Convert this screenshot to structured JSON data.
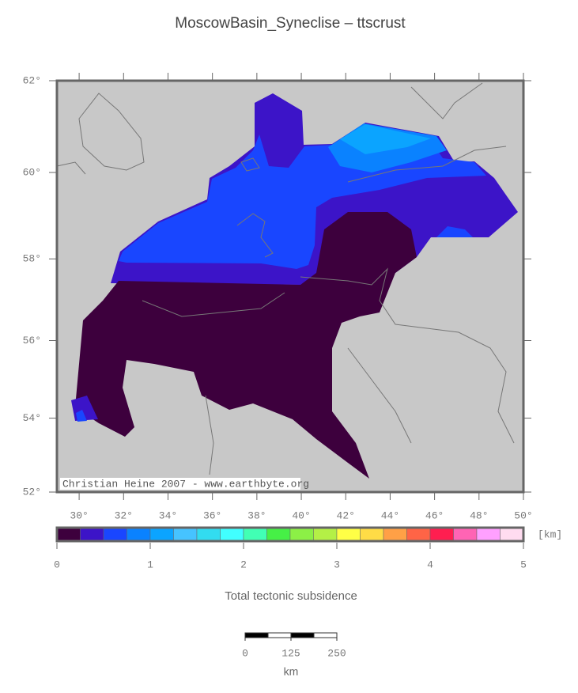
{
  "title": "MoscowBasin_Syneclise – ttscrust",
  "map": {
    "lon_range": [
      29,
      50
    ],
    "lat_range": [
      52,
      62
    ],
    "lon_ticks": [
      {
        "value": 30,
        "label": "30°"
      },
      {
        "value": 32,
        "label": "32°"
      },
      {
        "value": 34,
        "label": "34°"
      },
      {
        "value": 36,
        "label": "36°"
      },
      {
        "value": 38,
        "label": "38°"
      },
      {
        "value": 40,
        "label": "40°"
      },
      {
        "value": 42,
        "label": "42°"
      },
      {
        "value": 44,
        "label": "44°"
      },
      {
        "value": 46,
        "label": "46°"
      },
      {
        "value": 48,
        "label": "48°"
      },
      {
        "value": 50,
        "label": "50°"
      }
    ],
    "lat_ticks": [
      {
        "value": 52,
        "label": "52°"
      },
      {
        "value": 54,
        "label": "54°"
      },
      {
        "value": 56,
        "label": "56°"
      },
      {
        "value": 58,
        "label": "58°"
      },
      {
        "value": 60,
        "label": "60°"
      },
      {
        "value": 62,
        "label": "62°"
      }
    ],
    "credit": "Christian Heine 2007 - www.earthbyte.org"
  },
  "colorbar": {
    "range": [
      0,
      5
    ],
    "ticks": [
      0,
      1,
      2,
      3,
      4,
      5
    ],
    "unit": "[km]",
    "label": "Total tectonic subsidence",
    "colors": [
      "#3d003d",
      "#3c14c8",
      "#1946ff",
      "#0a82ff",
      "#0ba4ff",
      "#46c3ff",
      "#32dcf0",
      "#41ffff",
      "#41ffb4",
      "#46f046",
      "#8cf046",
      "#b4f046",
      "#ffff46",
      "#ffdc46",
      "#ffa046",
      "#ff6446",
      "#ff1e50",
      "#ff64b4",
      "#ffa0ff",
      "#ffdcf0"
    ]
  },
  "scale_bar": {
    "ticks": [
      0,
      125,
      250
    ],
    "unit": "km"
  }
}
